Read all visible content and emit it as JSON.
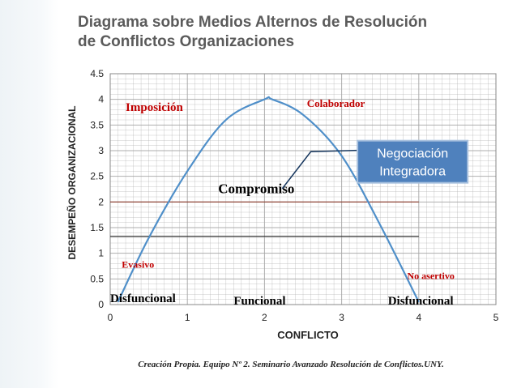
{
  "title_line1": "Diagrama sobre Medios Alternos de Resolución",
  "title_line2": "de Conflictos Organizaciones",
  "caption": "Creación Propia. Equipo Nº 2. Seminario Avanzado Resolución de Conflictos.UNY.",
  "colors": {
    "curve": "#4f8fc9",
    "grid": "#a6a6a6",
    "line_brown": "#8b3a2a",
    "line_dark": "#333333",
    "red_text": "#c00000",
    "box_fill": "#4f81bd",
    "box_border": "#a7c0de",
    "connector": "#17375e",
    "title": "#5b5b5b"
  },
  "chart_data": {
    "type": "line",
    "xlabel": "CONFLICTO",
    "ylabel": "DESEMPEÑO ORGANIZACIONAL",
    "xlim": [
      0,
      5
    ],
    "ylim": [
      0,
      4.5
    ],
    "x_ticks": [
      "0",
      "1",
      "2",
      "3",
      "4",
      "5"
    ],
    "y_ticks": [
      "0",
      "0.5",
      "1",
      "1.5",
      "2",
      "2.5",
      "3",
      "3.5",
      "4",
      "4.5"
    ],
    "grid": true,
    "series": [
      {
        "x": [
          0.1,
          0.5,
          1.0,
          1.5,
          2.0,
          2.1,
          2.5,
          3.0,
          3.5,
          4.0
        ],
        "y": [
          0.05,
          1.3,
          2.6,
          3.6,
          4.0,
          4.0,
          3.7,
          2.9,
          1.55,
          0.05
        ]
      }
    ],
    "reference_lines": [
      {
        "y": 2.0,
        "x_range": [
          0,
          4
        ],
        "color": "#8b3a2a"
      },
      {
        "y": 1.33,
        "x_range": [
          0,
          4
        ],
        "color": "#333333"
      }
    ],
    "annotations": [
      {
        "text": "Imposición",
        "x": 0.2,
        "y": 3.77,
        "color": "#c00000"
      },
      {
        "text": "Colaborador",
        "x": 2.55,
        "y": 3.85,
        "color": "#c00000"
      },
      {
        "text": "Compromiso",
        "x": 1.4,
        "y": 2.17,
        "color": "#000000"
      },
      {
        "text": "Evasivo",
        "x": 0.15,
        "y": 0.72,
        "color": "#c00000"
      },
      {
        "text": "No asertivo",
        "x": 3.85,
        "y": 0.5,
        "color": "#c00000"
      },
      {
        "text": "Disfuncional",
        "x": 0.0,
        "y": 0.05,
        "color": "#000000"
      },
      {
        "text": "Funcional",
        "x": 1.6,
        "y": 0.0,
        "color": "#000000"
      },
      {
        "text": "Disfuncional",
        "x": 3.6,
        "y": 0.0,
        "color": "#000000"
      }
    ],
    "callout": {
      "text_line1": "Negociación",
      "text_line2": "Integradora",
      "x": 3.1,
      "y": 2.55
    }
  }
}
